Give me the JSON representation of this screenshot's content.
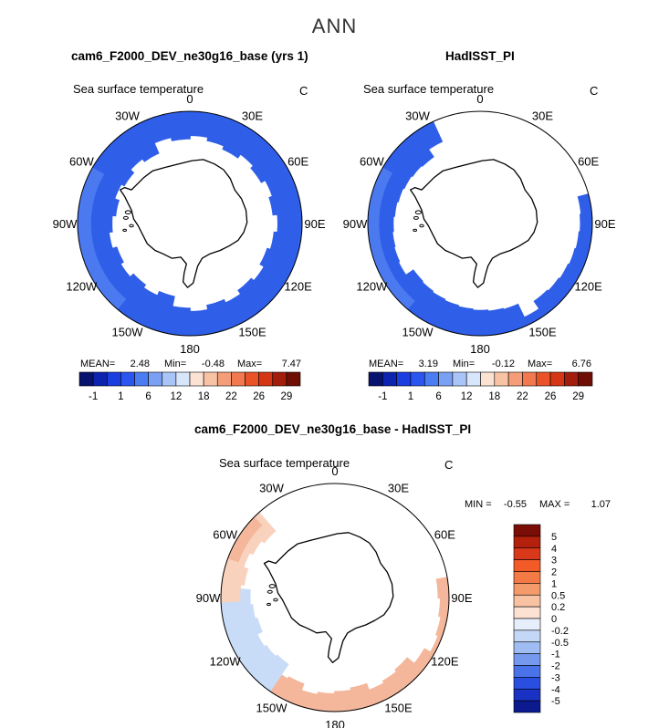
{
  "page_title": "ANN",
  "colors": {
    "land": "#ffffff",
    "coast": "#000000",
    "ocean_outline": "#000000"
  },
  "chart_data": [
    {
      "type": "heatmap",
      "projection": "south-polar-stereographic",
      "title": "cam6_F2000_DEV_ne30g16_base (yrs 1)",
      "variable": "Sea surface temperature",
      "units": "C",
      "longitude_labels": [
        "0",
        "30E",
        "60E",
        "90E",
        "120E",
        "150E",
        "180",
        "150W",
        "120W",
        "90W",
        "60W",
        "30W"
      ],
      "stats": {
        "mean_label": "MEAN=",
        "mean": "2.48",
        "min_label": "Min=",
        "min": "-0.48",
        "max_label": "Max=",
        "max": "7.47"
      },
      "colorbar_labels": [
        "-1",
        "1",
        "6",
        "12",
        "18",
        "22",
        "26",
        "29"
      ],
      "colorbar_colors": [
        "#08136e",
        "#0d24b0",
        "#1c3de0",
        "#2a55ef",
        "#4a7cf2",
        "#7aa0f3",
        "#a9c5f7",
        "#d7e6fb",
        "#fbe2d2",
        "#f8c2a5",
        "#f59d78",
        "#f2784f",
        "#ea5228",
        "#d43616",
        "#a31d0c",
        "#6e0e05"
      ],
      "ocean_ring_color": "#2f5ee8",
      "ocean_ring_light": "#4b79f0",
      "ice_edge_pattern": "uniform"
    },
    {
      "type": "heatmap",
      "projection": "south-polar-stereographic",
      "title": "HadISST_PI",
      "variable": "Sea surface temperature",
      "units": "C",
      "longitude_labels": [
        "0",
        "30E",
        "60E",
        "90E",
        "120E",
        "150E",
        "180",
        "150W",
        "120W",
        "90W",
        "60W",
        "30W"
      ],
      "stats": {
        "mean_label": "MEAN=",
        "mean": "3.19",
        "min_label": "Min=",
        "min": "-0.12",
        "max_label": "Max=",
        "max": "6.76"
      },
      "colorbar_labels": [
        "-1",
        "1",
        "6",
        "12",
        "18",
        "22",
        "26",
        "29"
      ],
      "colorbar_colors": [
        "#08136e",
        "#0d24b0",
        "#1c3de0",
        "#2a55ef",
        "#4a7cf2",
        "#7aa0f3",
        "#a9c5f7",
        "#d7e6fb",
        "#fbe2d2",
        "#f8c2a5",
        "#f59d78",
        "#f2784f",
        "#ea5228",
        "#d43616",
        "#a31d0c",
        "#6e0e05"
      ],
      "ocean_ring_color": "#2f5ee8",
      "ocean_ring_light": "#4b79f0",
      "ice_edge_pattern": "sector"
    },
    {
      "type": "heatmap",
      "projection": "south-polar-stereographic",
      "title": "cam6_F2000_DEV_ne30g16_base - HadISST_PI",
      "variable": "Sea surface temperature",
      "units": "C",
      "longitude_labels": [
        "0",
        "30E",
        "60E",
        "90E",
        "120E",
        "150E",
        "180",
        "150W",
        "120W",
        "90W",
        "60W",
        "30W"
      ],
      "stats": {
        "min_label": "MIN =",
        "min": "-0.55",
        "max_label": "MAX =",
        "max": "1.07"
      },
      "colorbar_labels": [
        "5",
        "4",
        "3",
        "2",
        "1",
        "0.5",
        "0.2",
        "0",
        "-0.2",
        "-0.5",
        "-1",
        "-2",
        "-3",
        "-4",
        "-5"
      ],
      "colorbar_colors": [
        "#7a0d05",
        "#b3200c",
        "#d9381a",
        "#f25a28",
        "#f47a45",
        "#f59a6a",
        "#f8c2a3",
        "#fde2d4",
        "#e6edfb",
        "#c3d7f6",
        "#9fbdf2",
        "#7599ef",
        "#4a73ea",
        "#2a4fe0",
        "#1a32c4",
        "#0c1a8f"
      ],
      "diff_pos_color": "#f4b79b",
      "diff_pos_light": "#f9d2bd",
      "diff_neg_color": "#c9dcf7"
    }
  ]
}
